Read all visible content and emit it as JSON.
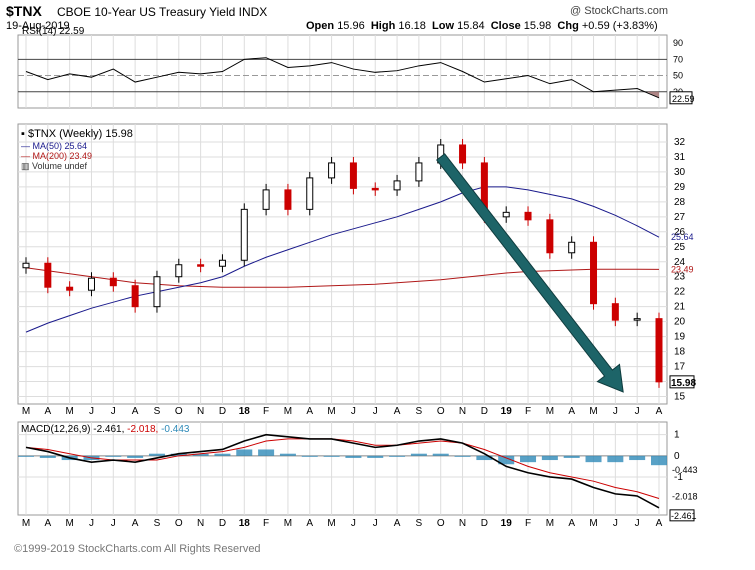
{
  "header": {
    "symbol": "$TNX",
    "name": "CBOE 10-Year US Treasury Yield INDX",
    "date": "19-Aug-2019",
    "open_label": "Open",
    "open": "15.96",
    "high_label": "High",
    "high": "16.18",
    "low_label": "Low",
    "low": "15.84",
    "close_label": "Close",
    "close": "15.98",
    "chg_label": "Chg",
    "chg": "+0.59 (+3.83%)",
    "watermark": "@ StockCharts.com"
  },
  "footer": "©1999-2019 StockCharts.com All Rights Reserved",
  "colors": {
    "up": "#000000",
    "down": "#cc0000",
    "ma50": "#1a1a8c",
    "ma200": "#b01818",
    "macd": "#000000",
    "signal": "#cc0000",
    "histogram": "#2e8ab8",
    "arrow": "#1d6468",
    "grid": "#dddddd",
    "rsi_fill": "#a07070"
  },
  "chart_data": [
    {
      "panel": "rsi",
      "type": "line",
      "legend": "RSI(14) 22.59",
      "ylim": [
        10,
        100
      ],
      "yticks": [
        90,
        70,
        50,
        30
      ],
      "reference_lines": [
        70,
        50,
        30
      ],
      "last_value_label": "22.59",
      "x": [
        "2017-03",
        "2017-04",
        "2017-05",
        "2017-06",
        "2017-07",
        "2017-08",
        "2017-09",
        "2017-10",
        "2017-11",
        "2017-12",
        "2018-01",
        "2018-02",
        "2018-03",
        "2018-04",
        "2018-05",
        "2018-06",
        "2018-07",
        "2018-08",
        "2018-09",
        "2018-10",
        "2018-11",
        "2018-12",
        "2019-01",
        "2019-02",
        "2019-03",
        "2019-04",
        "2019-05",
        "2019-06",
        "2019-07",
        "2019-08"
      ],
      "values": [
        55,
        45,
        52,
        48,
        58,
        42,
        48,
        54,
        52,
        55,
        70,
        72,
        60,
        62,
        66,
        58,
        54,
        56,
        62,
        66,
        55,
        42,
        46,
        50,
        40,
        45,
        30,
        32,
        34,
        22.59
      ]
    },
    {
      "panel": "price",
      "type": "candlestick",
      "legend": [
        "$TNX (Weekly) 15.98",
        "MA(50) 25.64",
        "MA(200) 23.49",
        "Volume undef"
      ],
      "ylim": [
        14.5,
        33.2
      ],
      "yticks": [
        32,
        31,
        30,
        29,
        28,
        27,
        26,
        25,
        24,
        23,
        22,
        21,
        20,
        19,
        18,
        17,
        16,
        15
      ],
      "last_value_labels": {
        "close": "15.98",
        "ma50": "25.64",
        "ma200": "23.49"
      },
      "x": [
        "2017-03",
        "2017-04",
        "2017-05",
        "2017-06",
        "2017-07",
        "2017-08",
        "2017-09",
        "2017-10",
        "2017-11",
        "2017-12",
        "2018-01",
        "2018-02",
        "2018-03",
        "2018-04",
        "2018-05",
        "2018-06",
        "2018-07",
        "2018-08",
        "2018-09",
        "2018-10",
        "2018-11",
        "2018-12",
        "2019-01",
        "2019-02",
        "2019-03",
        "2019-04",
        "2019-05",
        "2019-06",
        "2019-07",
        "2019-08"
      ],
      "close": [
        23.9,
        22.3,
        22.1,
        22.9,
        22.4,
        21.0,
        23.0,
        23.8,
        23.7,
        24.1,
        27.5,
        28.8,
        27.5,
        29.6,
        30.6,
        28.9,
        28.8,
        29.4,
        30.6,
        31.8,
        30.6,
        27.0,
        27.3,
        26.8,
        24.6,
        25.3,
        21.2,
        20.1,
        20.2,
        15.98
      ],
      "ma50": [
        19.3,
        19.9,
        20.4,
        20.9,
        21.3,
        21.7,
        22.0,
        22.3,
        22.6,
        23.0,
        23.7,
        24.3,
        24.8,
        25.3,
        25.8,
        26.2,
        26.6,
        27.0,
        27.5,
        28.0,
        28.6,
        29.0,
        29.0,
        28.8,
        28.5,
        28.2,
        27.7,
        27.1,
        26.4,
        25.64
      ],
      "ma200": [
        23.6,
        23.4,
        23.2,
        23.0,
        22.8,
        22.6,
        22.5,
        22.4,
        22.35,
        22.3,
        22.3,
        22.3,
        22.3,
        22.35,
        22.4,
        22.45,
        22.5,
        22.6,
        22.7,
        22.8,
        22.95,
        23.1,
        23.25,
        23.35,
        23.4,
        23.45,
        23.5,
        23.5,
        23.5,
        23.49
      ],
      "annotation": {
        "type": "arrow",
        "from": [
          "2018-10",
          31.0
        ],
        "to": [
          "2019-07",
          15.3
        ]
      }
    },
    {
      "panel": "macd",
      "type": "line",
      "legend": {
        "label": "MACD(12,26,9)",
        "macd": "-2.461",
        "signal": "-2.018",
        "hist": "-0.443"
      },
      "ylim": [
        -2.8,
        1.6
      ],
      "yticks": [
        1,
        0,
        -1
      ],
      "last_value_labels": {
        "hist": "-0.443",
        "signal": "-2.018",
        "macd": "-2.461"
      },
      "x": [
        "2017-03",
        "2017-04",
        "2017-05",
        "2017-06",
        "2017-07",
        "2017-08",
        "2017-09",
        "2017-10",
        "2017-11",
        "2017-12",
        "2018-01",
        "2018-02",
        "2018-03",
        "2018-04",
        "2018-05",
        "2018-06",
        "2018-07",
        "2018-08",
        "2018-09",
        "2018-10",
        "2018-11",
        "2018-12",
        "2019-01",
        "2019-02",
        "2019-03",
        "2019-04",
        "2019-05",
        "2019-06",
        "2019-07",
        "2019-08"
      ],
      "macd": [
        0.4,
        0.2,
        -0.1,
        -0.3,
        -0.2,
        -0.3,
        -0.1,
        0.1,
        0.2,
        0.3,
        0.7,
        1.0,
        0.9,
        0.8,
        0.8,
        0.6,
        0.4,
        0.5,
        0.7,
        0.8,
        0.6,
        0.1,
        -0.5,
        -0.8,
        -1.0,
        -1.1,
        -1.5,
        -1.8,
        -1.9,
        -2.461
      ],
      "signal": [
        0.4,
        0.3,
        0.1,
        -0.1,
        -0.2,
        -0.2,
        -0.2,
        0.0,
        0.1,
        0.2,
        0.4,
        0.7,
        0.8,
        0.8,
        0.8,
        0.7,
        0.5,
        0.5,
        0.6,
        0.7,
        0.6,
        0.3,
        -0.1,
        -0.5,
        -0.8,
        -1.0,
        -1.2,
        -1.5,
        -1.7,
        -2.018
      ],
      "histogram": [
        0.0,
        -0.1,
        -0.2,
        -0.2,
        0.0,
        -0.1,
        0.1,
        0.1,
        0.1,
        0.1,
        0.3,
        0.3,
        0.1,
        0.0,
        0.0,
        -0.1,
        -0.1,
        0.0,
        0.1,
        0.1,
        0.0,
        -0.2,
        -0.4,
        -0.3,
        -0.2,
        -0.1,
        -0.3,
        -0.3,
        -0.2,
        -0.443
      ]
    }
  ],
  "x_axis_labels": [
    "M",
    "A",
    "M",
    "J",
    "J",
    "A",
    "S",
    "O",
    "N",
    "D",
    "18",
    "F",
    "M",
    "A",
    "M",
    "J",
    "J",
    "A",
    "S",
    "O",
    "N",
    "D",
    "19",
    "F",
    "M",
    "A",
    "M",
    "J",
    "J",
    "A"
  ]
}
